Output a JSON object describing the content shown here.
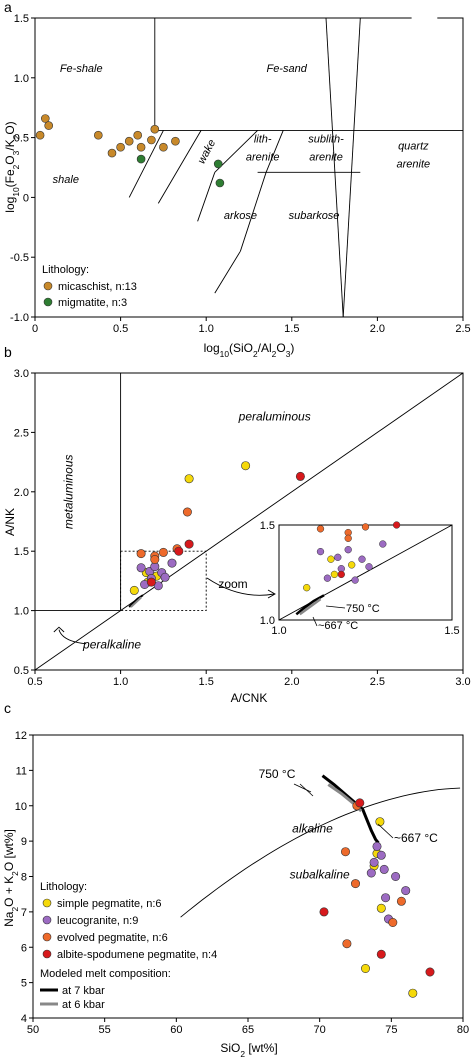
{
  "chart_data": [
    {
      "panel": "a",
      "type": "scatter",
      "xlabel": "log10(SiO2/Al2O3)",
      "ylabel": "log10(Fe2O3/K2O)",
      "xlim": [
        0,
        2.5
      ],
      "ylim": [
        -1.0,
        1.5
      ],
      "xticks": [
        "0",
        "0.5",
        "1.0",
        "1.5",
        "2.0",
        "2.5"
      ],
      "yticks": [
        "-1.0",
        "-0.5",
        "0",
        "0.5",
        "1.0",
        "1.5"
      ],
      "field_labels": [
        {
          "text": "Fe-shale",
          "x": 0.27,
          "y": 1.05
        },
        {
          "text": "Fe-sand",
          "x": 1.47,
          "y": 1.05
        },
        {
          "text": "shale",
          "x": 0.18,
          "y": 0.12
        },
        {
          "text": "wake",
          "x": 1.02,
          "y": 0.37,
          "rotate": -62
        },
        {
          "text": "lith-",
          "x": 1.33,
          "y": 0.46
        },
        {
          "text": "arenite",
          "x": 1.33,
          "y": 0.31
        },
        {
          "text": "sublith-",
          "x": 1.7,
          "y": 0.46
        },
        {
          "text": "arenite",
          "x": 1.7,
          "y": 0.31
        },
        {
          "text": "quartz",
          "x": 2.21,
          "y": 0.4
        },
        {
          "text": "arenite",
          "x": 2.21,
          "y": 0.25
        },
        {
          "text": "arkose",
          "x": 1.2,
          "y": -0.18
        },
        {
          "text": "subarkose",
          "x": 1.63,
          "y": -0.18
        }
      ],
      "legend_title": "Lithology:",
      "legend_position": "bottom-left",
      "series": [
        {
          "name": "micaschist, n:13",
          "color": "#c8892a",
          "x": [
            0.06,
            0.08,
            0.03,
            0.37,
            0.55,
            0.6,
            0.7,
            0.82,
            0.5,
            0.62,
            0.68,
            0.75,
            0.45
          ],
          "y": [
            0.66,
            0.6,
            0.52,
            0.52,
            0.47,
            0.52,
            0.57,
            0.47,
            0.42,
            0.42,
            0.48,
            0.42,
            0.37
          ]
        },
        {
          "name": "migmatite, n:3",
          "color": "#2e7d32",
          "x": [
            0.62,
            1.07,
            1.08
          ],
          "y": [
            0.32,
            0.28,
            0.12
          ]
        }
      ]
    },
    {
      "panel": "b",
      "type": "scatter",
      "xlabel": "A/CNK",
      "ylabel": "A/NK",
      "xlim": [
        0.5,
        3.0
      ],
      "ylim": [
        0.5,
        3.0
      ],
      "xticks": [
        "0.5",
        "1.0",
        "1.5",
        "2.0",
        "2.5",
        "3.0"
      ],
      "yticks": [
        "0.5",
        "1.0",
        "1.5",
        "2.0",
        "2.5",
        "3.0"
      ],
      "field_labels": [
        "peraluminous",
        "metaluminous",
        "peralkaline"
      ],
      "annotation": "zoom",
      "inset": {
        "xlim": [
          1.0,
          1.5
        ],
        "ylim": [
          1.0,
          1.5
        ],
        "xticks": [
          "1.0",
          "1.5"
        ],
        "yticks": [
          "1.0",
          "1.5"
        ],
        "annotations": [
          "750 °C",
          "~667 °C"
        ]
      },
      "series": [
        {
          "name": "simple pegmatite",
          "color": "#f5d90a",
          "x": [
            1.73,
            1.4,
            1.08,
            1.16,
            1.21,
            1.15
          ],
          "y": [
            2.22,
            2.11,
            1.17,
            1.24,
            1.29,
            1.32
          ]
        },
        {
          "name": "leucogranite",
          "color": "#9c6bc2",
          "x": [
            1.17,
            1.2,
            1.24,
            1.22,
            1.26,
            1.3,
            1.18,
            1.14,
            1.12
          ],
          "y": [
            1.33,
            1.37,
            1.32,
            1.21,
            1.28,
            1.4,
            1.27,
            1.22,
            1.36
          ]
        },
        {
          "name": "evolved pegmatite",
          "color": "#ee6a2b",
          "x": [
            1.12,
            1.2,
            1.25,
            1.33,
            1.39,
            1.2
          ],
          "y": [
            1.48,
            1.46,
            1.49,
            1.52,
            1.83,
            1.43
          ]
        },
        {
          "name": "albite-spodumene pegmatite",
          "color": "#d7191c",
          "x": [
            2.05,
            1.4,
            1.34,
            1.18
          ],
          "y": [
            2.13,
            1.56,
            1.5,
            1.24
          ]
        }
      ],
      "model_curves": [
        {
          "name": "at 7 kbar",
          "color": "#000000",
          "x": [
            1.05,
            1.07,
            1.1,
            1.13
          ],
          "y": [
            1.03,
            1.06,
            1.1,
            1.13
          ]
        },
        {
          "name": "at 6 kbar",
          "color": "#888888",
          "x": [
            1.06,
            1.09,
            1.12
          ],
          "y": [
            1.03,
            1.07,
            1.11
          ]
        }
      ]
    },
    {
      "panel": "c",
      "type": "scatter",
      "xlabel": "SiO2 [wt%]",
      "ylabel": "Na2O + K2O [wt%]",
      "xlim": [
        50,
        80
      ],
      "ylim": [
        4,
        12
      ],
      "xticks": [
        "50",
        "55",
        "60",
        "65",
        "70",
        "75",
        "80"
      ],
      "yticks": [
        "4",
        "5",
        "6",
        "7",
        "8",
        "9",
        "10",
        "11",
        "12"
      ],
      "field_labels": [
        "alkaline",
        "subalkaline"
      ],
      "annotations": [
        "750 °C",
        "~667 °C"
      ],
      "legend_title": "Lithology:",
      "legend_position": "bottom-left",
      "series": [
        {
          "name": "simple pegmatite, n:6",
          "color": "#f5d90a",
          "x": [
            74.2,
            74.0,
            73.8,
            74.3,
            73.2,
            76.5
          ],
          "y": [
            9.55,
            8.65,
            8.3,
            7.1,
            5.4,
            4.7
          ]
        },
        {
          "name": "leucogranite, n:9",
          "color": "#9c6bc2",
          "x": [
            74.0,
            74.3,
            73.8,
            73.6,
            74.5,
            75.3,
            76.0,
            74.6,
            74.8
          ],
          "y": [
            8.85,
            8.6,
            8.4,
            8.1,
            8.2,
            8.0,
            7.6,
            7.4,
            6.8
          ]
        },
        {
          "name": "evolved pegmatite, n:6",
          "color": "#ee6a2b",
          "x": [
            72.6,
            71.8,
            72.5,
            71.9,
            75.7,
            75.1
          ],
          "y": [
            10.0,
            8.7,
            7.8,
            6.1,
            7.3,
            6.7
          ]
        },
        {
          "name": "albite-spodumene pegmatite, n:4",
          "color": "#d7191c",
          "x": [
            72.8,
            70.3,
            74.3,
            77.7
          ],
          "y": [
            10.08,
            7.0,
            5.8,
            5.3
          ]
        }
      ],
      "model_legend_title": "Modeled melt composition:",
      "model_curves": [
        {
          "name": "at 7 kbar",
          "color": "#000000",
          "x": [
            70.2,
            71.0,
            72.0,
            73.0,
            73.3,
            73.6,
            73.9,
            74.1
          ],
          "y": [
            10.85,
            10.6,
            10.25,
            9.9,
            9.6,
            9.3,
            9.05,
            8.95
          ]
        },
        {
          "name": "at 6 kbar",
          "color": "#888888",
          "x": [
            70.6,
            71.5,
            72.4,
            72.9
          ],
          "y": [
            10.6,
            10.35,
            10.05,
            9.85
          ]
        }
      ]
    }
  ],
  "panel_letters": [
    "a",
    "b",
    "c"
  ]
}
